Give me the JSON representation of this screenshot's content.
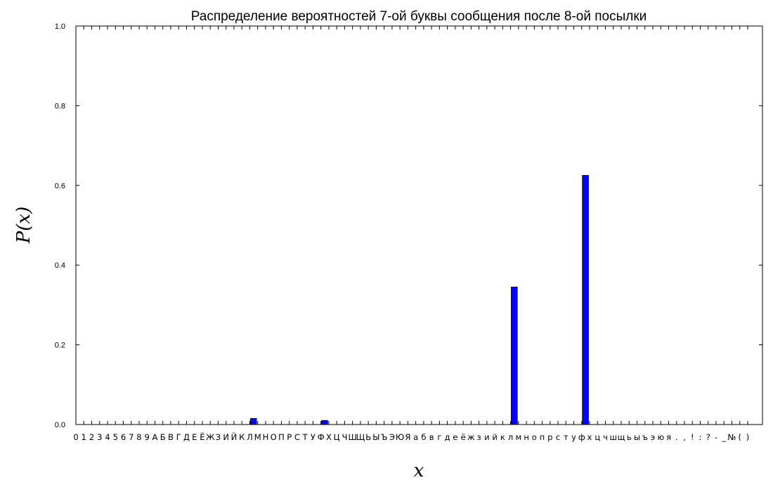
{
  "chart_data": {
    "type": "bar",
    "title": "Распределение вероятностей 7-ой буквы сообщения после 8-ой посылки",
    "xlabel": "x",
    "ylabel": "P(x)",
    "ylim": [
      0,
      1.0
    ],
    "yticks": [
      "0.0",
      "0.2",
      "0.4",
      "0.6",
      "0.8",
      "1.0"
    ],
    "grid": false,
    "legend": "none",
    "bar_color": "#0000ff",
    "categories": [
      "0",
      "1",
      "2",
      "3",
      "4",
      "5",
      "6",
      "7",
      "8",
      "9",
      "А",
      "Б",
      "В",
      "Г",
      "Д",
      "Е",
      "Ё",
      "Ж",
      "З",
      "И",
      "Й",
      "К",
      "Л",
      "М",
      "Н",
      "О",
      "П",
      "Р",
      "С",
      "Т",
      "У",
      "Ф",
      "Х",
      "Ц",
      "Ч",
      "Ш",
      "Щ",
      "Ь",
      "Ы",
      "Ъ",
      "Э",
      "Ю",
      "Я",
      "а",
      "б",
      "в",
      "г",
      "д",
      "е",
      "ё",
      "ж",
      "з",
      "и",
      "й",
      "к",
      "л",
      "м",
      "н",
      "о",
      "п",
      "р",
      "с",
      "т",
      "у",
      "ф",
      "х",
      "ц",
      "ч",
      "ш",
      "щ",
      "ь",
      "ы",
      "ъ",
      "э",
      "ю",
      "я",
      ".",
      ",",
      "!",
      ":",
      "?",
      "-",
      "_",
      "№",
      "(",
      ")"
    ],
    "values": [
      0,
      0,
      0,
      0,
      0,
      0,
      0,
      0,
      0,
      0,
      0,
      0,
      0,
      0,
      0,
      0,
      0,
      0,
      0,
      0,
      0,
      0,
      0.015,
      0,
      0,
      0,
      0,
      0,
      0,
      0,
      0,
      0.01,
      0,
      0,
      0,
      0,
      0,
      0,
      0,
      0,
      0,
      0,
      0,
      0,
      0,
      0,
      0,
      0,
      0,
      0,
      0,
      0,
      0,
      0,
      0,
      0.345,
      0,
      0,
      0,
      0,
      0,
      0,
      0,
      0,
      0.625,
      0,
      0,
      0,
      0,
      0,
      0,
      0,
      0,
      0,
      0,
      0,
      0,
      0,
      0,
      0,
      0,
      0,
      0,
      0,
      0,
      0
    ]
  }
}
